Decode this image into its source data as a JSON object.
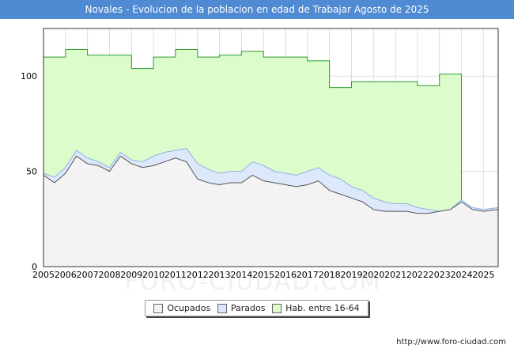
{
  "title": "Novales - Evolucion de la poblacion en edad de Trabajar Agosto de 2025",
  "source": "http://www.foro-ciudad.com",
  "watermark": "FORO-CIUDAD.COM",
  "colors": {
    "title_bg": "#4f8ad2",
    "hab_fill": "#ddfccc",
    "hab_line": "#2a9a2a",
    "parados_fill": "#dde9fb",
    "parados_line": "#8fb2e0",
    "ocupados_fill": "#f3f3f3",
    "ocupados_line": "#555555",
    "grid": "#dddddd"
  },
  "chart_data": {
    "type": "area",
    "title": "Novales - Evolucion de la poblacion en edad de Trabajar Agosto de 2025",
    "xlabel": "",
    "ylabel": "",
    "xlim": [
      2005,
      2025.67
    ],
    "ylim": [
      0,
      125
    ],
    "x_ticks": [
      "2005",
      "2006",
      "2007",
      "2008",
      "2009",
      "2010",
      "2011",
      "2012",
      "2013",
      "2014",
      "2015",
      "2016",
      "2017",
      "2018",
      "2019",
      "2020",
      "2021",
      "2022",
      "2023",
      "2024",
      "2025"
    ],
    "y_ticks": [
      0,
      50,
      100
    ],
    "grid": true,
    "legend_position": "bottom-center",
    "series": [
      {
        "name": "Hab. entre 16-64",
        "x": [
          2005,
          2006,
          2007,
          2008,
          2009,
          2010,
          2011,
          2012,
          2013,
          2014,
          2015,
          2016,
          2017,
          2018,
          2019,
          2020,
          2021,
          2022,
          2023
        ],
        "y": [
          110,
          114,
          111,
          111,
          104,
          110,
          114,
          110,
          111,
          113,
          110,
          110,
          108,
          94,
          97,
          97,
          97,
          95,
          101
        ],
        "end": 2024
      },
      {
        "name": "Parados",
        "x": [
          2005,
          2005.5,
          2006,
          2006.5,
          2007,
          2007.5,
          2008,
          2008.5,
          2009,
          2009.5,
          2010,
          2010.5,
          2011,
          2011.5,
          2012,
          2012.5,
          2013,
          2013.5,
          2014,
          2014.5,
          2015,
          2015.5,
          2016,
          2016.5,
          2017,
          2017.5,
          2018,
          2018.5,
          2019,
          2019.5,
          2020,
          2020.5,
          2021,
          2021.5,
          2022,
          2022.5,
          2023,
          2023.5,
          2024,
          2024.5,
          2025,
          2025.67
        ],
        "y": [
          49,
          47,
          52,
          61,
          57,
          55,
          52,
          60,
          56,
          55,
          58,
          60,
          61,
          62,
          54,
          51,
          49,
          50,
          50,
          55,
          53,
          50,
          49,
          48,
          50,
          52,
          48,
          46,
          42,
          40,
          36,
          34,
          33,
          33,
          31,
          30,
          29,
          30,
          35,
          31,
          30,
          31
        ]
      },
      {
        "name": "Ocupados",
        "x": [
          2005,
          2005.5,
          2006,
          2006.5,
          2007,
          2007.5,
          2008,
          2008.5,
          2009,
          2009.5,
          2010,
          2010.5,
          2011,
          2011.5,
          2012,
          2012.5,
          2013,
          2013.5,
          2014,
          2014.5,
          2015,
          2015.5,
          2016,
          2016.5,
          2017,
          2017.5,
          2018,
          2018.5,
          2019,
          2019.5,
          2020,
          2020.5,
          2021,
          2021.5,
          2022,
          2022.5,
          2023,
          2023.5,
          2024,
          2024.5,
          2025,
          2025.67
        ],
        "y": [
          48,
          44,
          49,
          58,
          54,
          53,
          50,
          58,
          54,
          52,
          53,
          55,
          57,
          55,
          46,
          44,
          43,
          44,
          44,
          48,
          45,
          44,
          43,
          42,
          43,
          45,
          40,
          38,
          36,
          34,
          30,
          29,
          29,
          29,
          28,
          28,
          29,
          30,
          34,
          30,
          29,
          30
        ]
      }
    ]
  }
}
